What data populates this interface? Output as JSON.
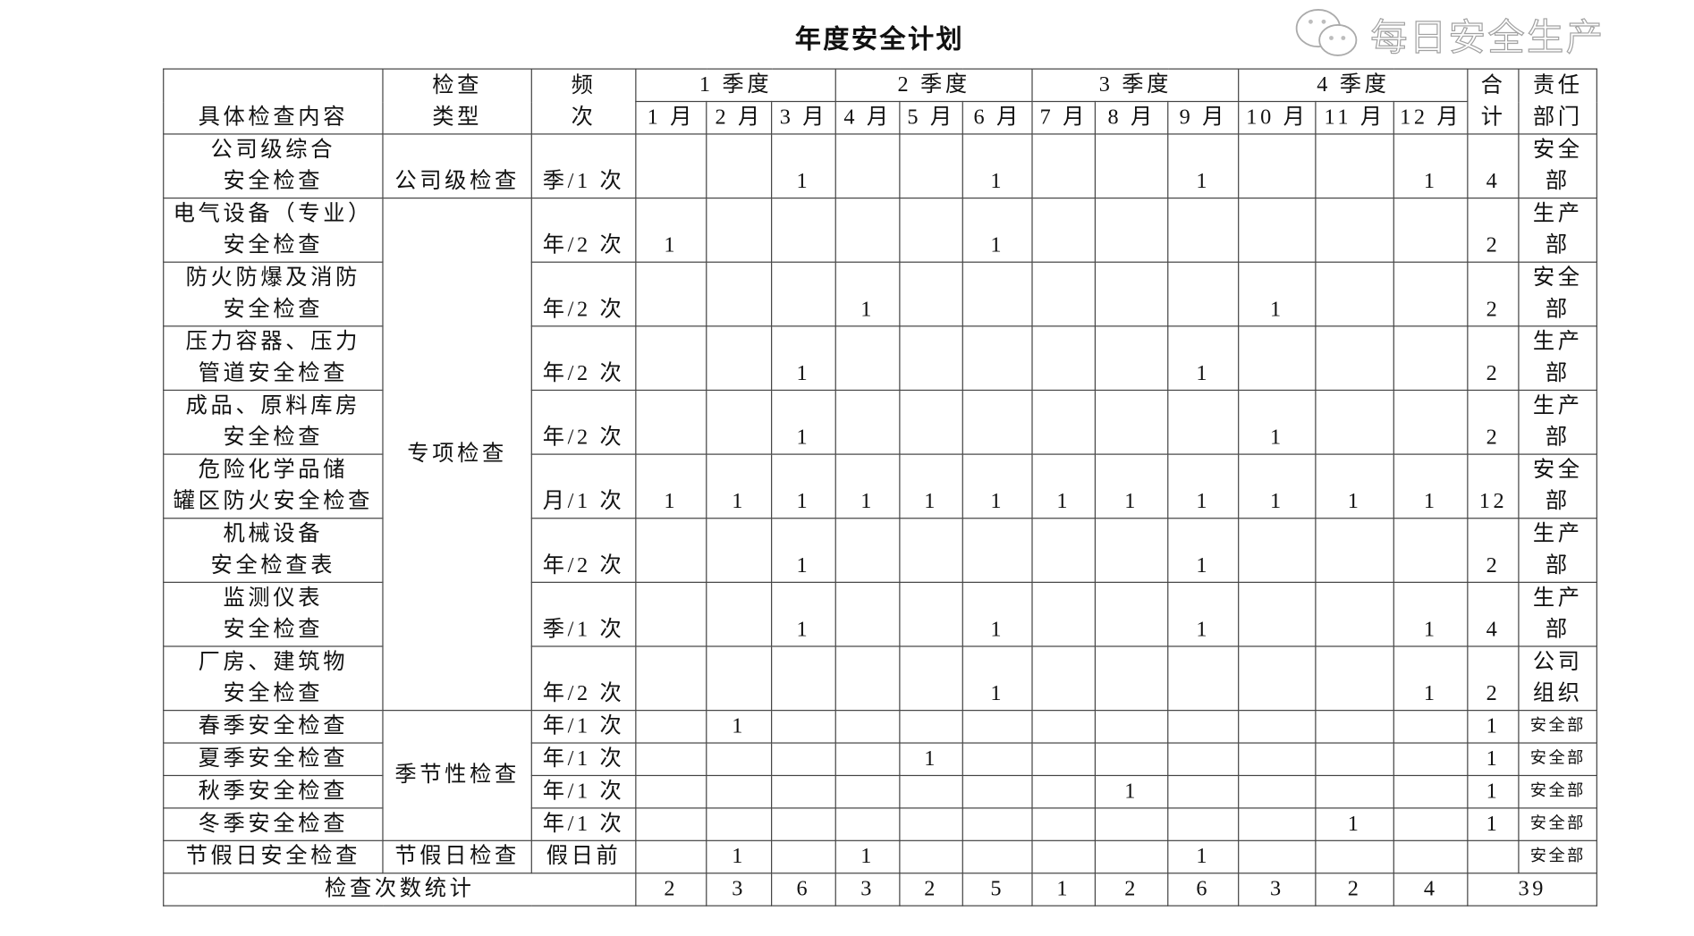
{
  "title": "年度安全计划",
  "header": {
    "content": "具体检查内容",
    "type": [
      "检查",
      "类型"
    ],
    "freq": [
      "频",
      "次"
    ],
    "quarters": [
      "1 季度",
      "2 季度",
      "3 季度",
      "4 季度"
    ],
    "months": [
      "1 月",
      "2 月",
      "3 月",
      "4 月",
      "5 月",
      "6 月",
      "7 月",
      "8 月",
      "9 月",
      "10 月",
      "11 月",
      "12 月"
    ],
    "total": [
      "合",
      "计"
    ],
    "dept": [
      "责任",
      "部门"
    ]
  },
  "rows": [
    {
      "name": [
        "公司级综合",
        "安全检查"
      ],
      "type": "公司级检查",
      "freq": "季/1 次",
      "months": [
        "",
        "",
        "1",
        "",
        "",
        "1",
        "",
        "",
        "1",
        "",
        "",
        "1"
      ],
      "total": "4",
      "dept": [
        "安全",
        "部"
      ]
    },
    {
      "name": [
        "电气设备（专业）",
        "安全检查"
      ],
      "type": "专项检查",
      "freq": "年/2 次",
      "months": [
        "1",
        "",
        "",
        "",
        "",
        "1",
        "",
        "",
        "",
        "",
        "",
        ""
      ],
      "total": "2",
      "dept": [
        "生产",
        "部"
      ]
    },
    {
      "name": [
        "防火防爆及消防",
        "安全检查"
      ],
      "freq": "年/2 次",
      "months": [
        "",
        "",
        "",
        "1",
        "",
        "",
        "",
        "",
        "",
        "1",
        "",
        ""
      ],
      "total": "2",
      "dept": [
        "安全",
        "部"
      ]
    },
    {
      "name": [
        "压力容器、压力",
        "管道安全检查"
      ],
      "freq": "年/2 次",
      "months": [
        "",
        "",
        "1",
        "",
        "",
        "",
        "",
        "",
        "1",
        "",
        "",
        ""
      ],
      "total": "2",
      "dept": [
        "生产",
        "部"
      ]
    },
    {
      "name": [
        "成品、原料库房",
        "安全检查"
      ],
      "freq": "年/2 次",
      "months": [
        "",
        "",
        "1",
        "",
        "",
        "",
        "",
        "",
        "",
        "1",
        "",
        ""
      ],
      "total": "2",
      "dept": [
        "生产",
        "部"
      ]
    },
    {
      "name": [
        "危险化学品储",
        "罐区防火安全检查"
      ],
      "freq": "月/1 次",
      "months": [
        "1",
        "1",
        "1",
        "1",
        "1",
        "1",
        "1",
        "1",
        "1",
        "1",
        "1",
        "1"
      ],
      "total": "12",
      "dept": [
        "安全",
        "部"
      ]
    },
    {
      "name": [
        "机械设备",
        "安全检查表"
      ],
      "freq": "年/2 次",
      "months": [
        "",
        "",
        "1",
        "",
        "",
        "",
        "",
        "",
        "1",
        "",
        "",
        ""
      ],
      "total": "2",
      "dept": [
        "生产",
        "部"
      ]
    },
    {
      "name": [
        "监测仪表",
        "安全检查"
      ],
      "freq": "季/1 次",
      "months": [
        "",
        "",
        "1",
        "",
        "",
        "1",
        "",
        "",
        "1",
        "",
        "",
        "1"
      ],
      "total": "4",
      "dept": [
        "生产",
        "部"
      ]
    },
    {
      "name": [
        "厂房、建筑物",
        "安全检查"
      ],
      "freq": "年/2 次",
      "months": [
        "",
        "",
        "",
        "",
        "",
        "1",
        "",
        "",
        "",
        "",
        "",
        "1"
      ],
      "total": "2",
      "dept": [
        "公司",
        "组织"
      ]
    },
    {
      "name": [
        "春季安全检查"
      ],
      "type": "季节性检查",
      "freq": "年/1 次",
      "months": [
        "",
        "1",
        "",
        "",
        "",
        "",
        "",
        "",
        "",
        "",
        "",
        ""
      ],
      "total": "1",
      "dept": [
        "安全部"
      ]
    },
    {
      "name": [
        "夏季安全检查"
      ],
      "freq": "年/1 次",
      "months": [
        "",
        "",
        "",
        "",
        "1",
        "",
        "",
        "",
        "",
        "",
        "",
        ""
      ],
      "total": "1",
      "dept": [
        "安全部"
      ]
    },
    {
      "name": [
        "秋季安全检查"
      ],
      "freq": "年/1 次",
      "months": [
        "",
        "",
        "",
        "",
        "",
        "",
        "",
        "1",
        "",
        "",
        "",
        ""
      ],
      "total": "1",
      "dept": [
        "安全部"
      ]
    },
    {
      "name": [
        "冬季安全检查"
      ],
      "freq": "年/1 次",
      "months": [
        "",
        "",
        "",
        "",
        "",
        "",
        "",
        "",
        "",
        "",
        "1",
        ""
      ],
      "total": "1",
      "dept": [
        "安全部"
      ]
    },
    {
      "name": [
        "节假日安全检查"
      ],
      "type": "节假日检查",
      "freq": "假日前",
      "months": [
        "",
        "1",
        "",
        "1",
        "",
        "",
        "",
        "",
        "1",
        "",
        "",
        ""
      ],
      "total": "",
      "dept": [
        "安全部"
      ]
    }
  ],
  "summary": {
    "label": "检查次数统计",
    "months": [
      "2",
      "3",
      "6",
      "3",
      "2",
      "5",
      "1",
      "2",
      "6",
      "3",
      "2",
      "4"
    ],
    "total": "39"
  },
  "watermark": "每日安全生产"
}
